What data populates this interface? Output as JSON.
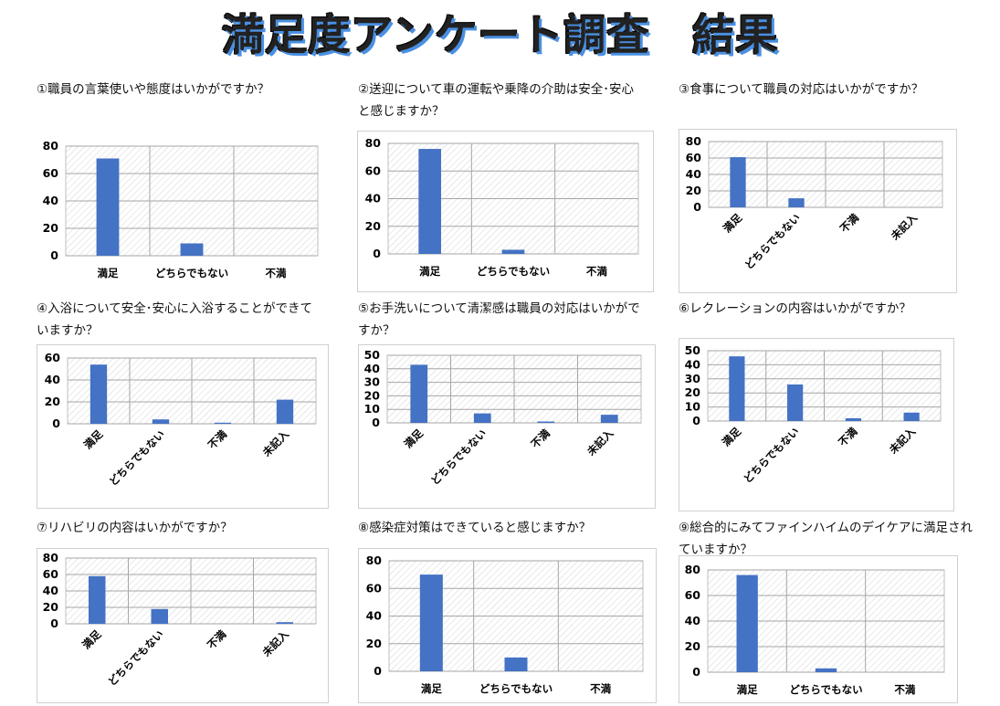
{
  "title": "満足度アンケート調査　結果",
  "chart_data": [
    {
      "id": "q1",
      "type": "bar",
      "title_lines": [
        "①職員の言葉使いや態度はいかがですか？"
      ],
      "categories": [
        "満足",
        "どちらでもない",
        "不満"
      ],
      "values": [
        71,
        9,
        0
      ],
      "ylim": [
        0,
        80
      ],
      "yticks": [
        0,
        20,
        40,
        60,
        80
      ],
      "grid": true
    },
    {
      "id": "q2",
      "type": "bar",
      "title_lines": [
        "②送迎について車の運転や乗降の介助は安全･安心",
        "と感じますか？"
      ],
      "categories": [
        "満足",
        "どちらでもない",
        "不満"
      ],
      "values": [
        76,
        3,
        0
      ],
      "ylim": [
        0,
        80
      ],
      "yticks": [
        0,
        20,
        40,
        60,
        80
      ],
      "grid": true
    },
    {
      "id": "q3",
      "type": "bar",
      "title_lines": [
        "③食事について職員の対応はいかがですか？"
      ],
      "categories": [
        "満足",
        "どちらでもない",
        "不満",
        "未記入"
      ],
      "values": [
        61,
        11,
        0,
        0
      ],
      "ylim": [
        0,
        80
      ],
      "yticks": [
        0,
        20,
        40,
        60,
        80
      ],
      "grid": true
    },
    {
      "id": "q4",
      "type": "bar",
      "title_lines": [
        "④入浴について安全･安心に入浴することができて",
        "いますか？"
      ],
      "categories": [
        "満足",
        "どちらでもない",
        "不満",
        "未記入"
      ],
      "values": [
        54,
        4,
        1,
        22
      ],
      "ylim": [
        0,
        60
      ],
      "yticks": [
        0,
        20,
        40,
        60
      ],
      "grid": true
    },
    {
      "id": "q5",
      "type": "bar",
      "title_lines": [
        "⑤お手洗いについて清潔感は職員の対応はいかがで",
        "すか？"
      ],
      "categories": [
        "満足",
        "どちらでもない",
        "不満",
        "未記入"
      ],
      "values": [
        43,
        7,
        1,
        6
      ],
      "ylim": [
        0,
        50
      ],
      "yticks": [
        0,
        10,
        20,
        30,
        40,
        50
      ],
      "grid": true
    },
    {
      "id": "q6",
      "type": "bar",
      "title_lines": [
        "⑥レクレーションの内容はいかがですか？"
      ],
      "categories": [
        "満足",
        "どちらでもない",
        "不満",
        "未記入"
      ],
      "values": [
        46,
        26,
        2,
        6
      ],
      "ylim": [
        0,
        50
      ],
      "yticks": [
        0,
        10,
        20,
        30,
        40,
        50
      ],
      "grid": true
    },
    {
      "id": "q7",
      "type": "bar",
      "title_lines": [
        "⑦リハビリの内容はいかがですか？"
      ],
      "categories": [
        "満足",
        "どちらでもない",
        "不満",
        "未記入"
      ],
      "values": [
        58,
        18,
        0,
        2
      ],
      "ylim": [
        0,
        80
      ],
      "yticks": [
        0,
        20,
        40,
        60,
        80
      ],
      "grid": true
    },
    {
      "id": "q8",
      "type": "bar",
      "title_lines": [
        "⑧感染症対策はできていると感じますか？"
      ],
      "categories": [
        "満足",
        "どちらでもない",
        "不満"
      ],
      "values": [
        70,
        10,
        0
      ],
      "ylim": [
        0,
        80
      ],
      "yticks": [
        0,
        20,
        40,
        60,
        80
      ],
      "grid": true
    },
    {
      "id": "q9",
      "type": "bar",
      "title_lines": [
        "⑨総合的にみてファインハイムのデイケアに満足され",
        "ていますか？"
      ],
      "categories": [
        "満足",
        "どちらでもない",
        "不満"
      ],
      "values": [
        76,
        3,
        0
      ],
      "ylim": [
        0,
        80
      ],
      "yticks": [
        0,
        20,
        40,
        60,
        80
      ],
      "grid": true
    }
  ]
}
